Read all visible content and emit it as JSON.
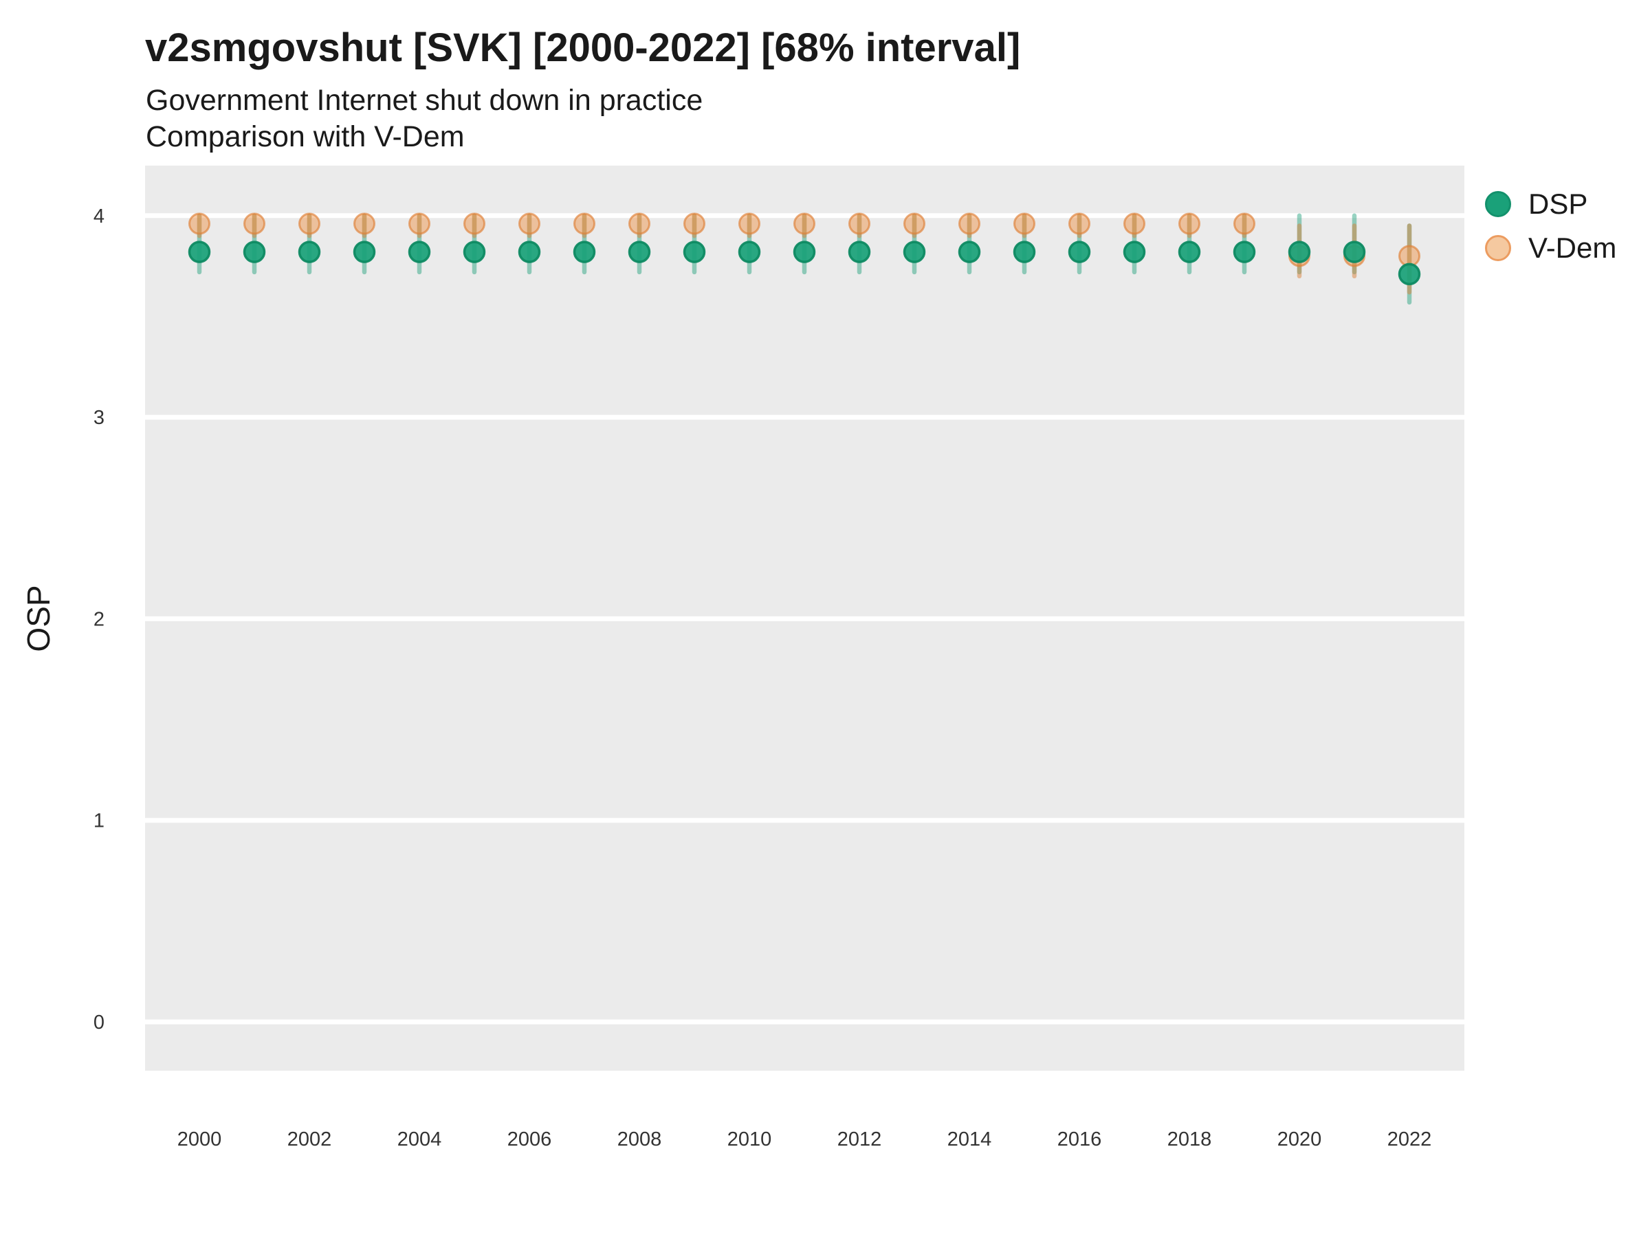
{
  "header": {
    "title": "v2smgovshut [SVK] [2000-2022] [68% interval]",
    "subtitle_line1": "Government Internet shut down in practice",
    "subtitle_line2": "Comparison with V-Dem"
  },
  "axes": {
    "y_label": "OSP",
    "y_ticks": [
      4,
      3,
      2,
      1,
      0
    ],
    "x_ticks": [
      2000,
      2002,
      2004,
      2006,
      2008,
      2010,
      2012,
      2014,
      2016,
      2018,
      2020,
      2022
    ]
  },
  "legend": {
    "items": [
      {
        "label": "DSP"
      },
      {
        "label": "V-Dem"
      }
    ]
  },
  "colors": {
    "panel_bg": "#EBEBEB",
    "gridline": "#FFFFFF",
    "dsp_fill": "#1AA179",
    "dsp_stroke": "#0E8A62",
    "dsp_bar": "#1B9E77",
    "vdem_fill": "#ED964E",
    "vdem_stroke": "#DE7F35",
    "vdem_bar": "#D9813B",
    "legend_dsp_fill": "#1AA179",
    "legend_dsp_stroke": "#13916C",
    "legend_vdem_fill": "#F5C9A0",
    "legend_vdem_stroke": "#EC9C60",
    "title_text": "#1A1A1A",
    "tick_text": "#333333"
  },
  "chart_data": {
    "type": "scatter",
    "title": "v2smgovshut [SVK] [2000-2022] [68% interval]",
    "subtitle": "Government Internet shut down in practice — Comparison with V-Dem",
    "xlabel": "",
    "ylabel": "OSP",
    "ylim": [
      -0.24,
      4.24
    ],
    "grid": "horizontal-major-only",
    "legend_position": "right-top",
    "interval": "68%",
    "x": [
      2000,
      2001,
      2002,
      2003,
      2004,
      2005,
      2006,
      2007,
      2008,
      2009,
      2010,
      2011,
      2012,
      2013,
      2014,
      2015,
      2016,
      2017,
      2018,
      2019,
      2020,
      2021,
      2022
    ],
    "series": [
      {
        "name": "DSP",
        "values": [
          3.82,
          3.82,
          3.82,
          3.82,
          3.82,
          3.82,
          3.82,
          3.82,
          3.82,
          3.82,
          3.82,
          3.82,
          3.82,
          3.82,
          3.82,
          3.82,
          3.82,
          3.82,
          3.82,
          3.82,
          3.82,
          3.82,
          3.71
        ],
        "lower": [
          3.72,
          3.72,
          3.72,
          3.72,
          3.72,
          3.72,
          3.72,
          3.72,
          3.72,
          3.72,
          3.72,
          3.72,
          3.72,
          3.72,
          3.72,
          3.72,
          3.72,
          3.72,
          3.72,
          3.72,
          3.72,
          3.72,
          3.57
        ],
        "upper": [
          4.0,
          4.0,
          4.0,
          4.0,
          4.0,
          4.0,
          4.0,
          4.0,
          4.0,
          4.0,
          4.0,
          4.0,
          4.0,
          4.0,
          4.0,
          4.0,
          4.0,
          4.0,
          4.0,
          4.0,
          4.0,
          4.0,
          3.95
        ]
      },
      {
        "name": "V-Dem",
        "values": [
          3.96,
          3.96,
          3.96,
          3.96,
          3.96,
          3.96,
          3.96,
          3.96,
          3.96,
          3.96,
          3.96,
          3.96,
          3.96,
          3.96,
          3.96,
          3.96,
          3.96,
          3.96,
          3.96,
          3.96,
          3.8,
          3.8,
          3.8
        ],
        "lower": [
          3.9,
          3.9,
          3.9,
          3.9,
          3.9,
          3.9,
          3.9,
          3.9,
          3.9,
          3.9,
          3.9,
          3.9,
          3.9,
          3.9,
          3.9,
          3.9,
          3.9,
          3.9,
          3.9,
          3.9,
          3.7,
          3.7,
          3.62
        ],
        "upper": [
          4.0,
          4.0,
          4.0,
          4.0,
          4.0,
          4.0,
          4.0,
          4.0,
          4.0,
          4.0,
          4.0,
          4.0,
          4.0,
          4.0,
          4.0,
          4.0,
          4.0,
          4.0,
          4.0,
          4.0,
          3.95,
          3.95,
          3.95
        ]
      }
    ]
  }
}
